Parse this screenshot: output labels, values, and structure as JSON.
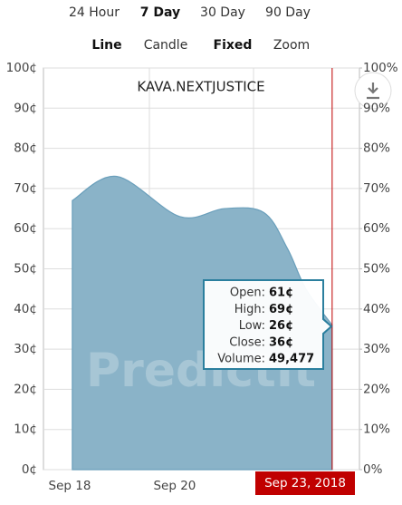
{
  "tabs": [
    "24 Hour",
    "7 Day",
    "30 Day",
    "90 Day"
  ],
  "modes": [
    "Line",
    "Candle",
    "Fixed",
    "Zoom"
  ],
  "chart_data": {
    "type": "area",
    "title": "KAVA.NEXTJUSTICE",
    "watermark": "PredictIt",
    "x": [
      18.05,
      18.9,
      20.1,
      20.95,
      21.7,
      22.15,
      22.5,
      23.0
    ],
    "series": [
      {
        "name": "KAVA.NEXTJUSTICE",
        "color": "#8ab3c8",
        "values": [
          67,
          73,
          63,
          65,
          64,
          55,
          45,
          36
        ]
      }
    ],
    "xlim": [
      17.5,
      23.52
    ],
    "xticks": [
      {
        "value": 18,
        "label": "Sep 18"
      },
      {
        "value": 20,
        "label": "Sep 20"
      }
    ],
    "ylim": [
      0,
      100
    ],
    "yticks": [
      {
        "value": 0,
        "label": "0¢"
      },
      {
        "value": 10,
        "label": "10¢"
      },
      {
        "value": 20,
        "label": "20¢"
      },
      {
        "value": 30,
        "label": "30¢"
      },
      {
        "value": 40,
        "label": "40¢"
      },
      {
        "value": 50,
        "label": "50¢"
      },
      {
        "value": 60,
        "label": "60¢"
      },
      {
        "value": 70,
        "label": "70¢"
      },
      {
        "value": 80,
        "label": "80¢"
      },
      {
        "value": 90,
        "label": "90¢"
      },
      {
        "value": 100,
        "label": "100¢"
      }
    ],
    "y2lim": [
      0,
      100
    ],
    "y2ticks": [
      {
        "value": 0,
        "label": "0%"
      },
      {
        "value": 10,
        "label": "10%"
      },
      {
        "value": 20,
        "label": "20%"
      },
      {
        "value": 30,
        "label": "30%"
      },
      {
        "value": 40,
        "label": "40%"
      },
      {
        "value": 50,
        "label": "50%"
      },
      {
        "value": 60,
        "label": "60%"
      },
      {
        "value": 70,
        "label": "70%"
      },
      {
        "value": 80,
        "label": "80%"
      },
      {
        "value": 90,
        "label": "90%"
      },
      {
        "value": 100,
        "label": "100%"
      }
    ],
    "grid": true,
    "cursor": {
      "value": 23,
      "label": "Sep 23, 2018",
      "color": "#c00000"
    },
    "tooltip": [
      {
        "label": "Open:",
        "value": "61¢"
      },
      {
        "label": "High:",
        "value": "69¢"
      },
      {
        "label": "Low:",
        "value": "26¢"
      },
      {
        "label": "Close:",
        "value": "36¢"
      },
      {
        "label": "Volume:",
        "value": "49,477"
      }
    ]
  }
}
